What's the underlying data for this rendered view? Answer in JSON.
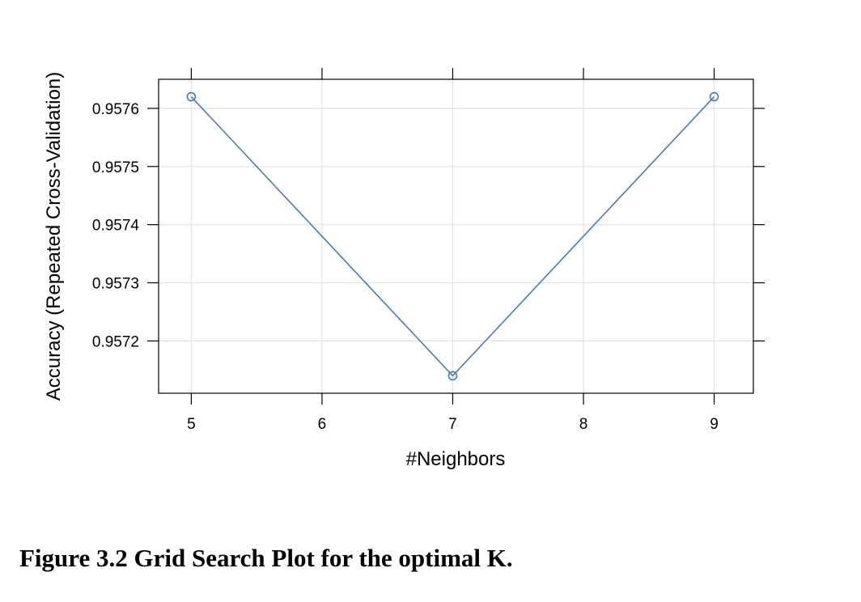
{
  "caption": "Figure 3.2 Grid Search Plot for the optimal K.",
  "chart_data": {
    "type": "line",
    "xlabel": "#Neighbors",
    "ylabel": "Accuracy (Repeated Cross-Validation)",
    "x": [
      5,
      7,
      9
    ],
    "y": [
      0.95762,
      0.95714,
      0.95762
    ],
    "xlim": [
      4.75,
      9.3
    ],
    "ylim": [
      0.95711,
      0.95765
    ],
    "xticks": [
      "5",
      "6",
      "7",
      "8",
      "9"
    ],
    "yticks": [
      "0.9572",
      "0.9573",
      "0.9574",
      "0.9575",
      "0.9576"
    ],
    "grid": true,
    "marker": "open-circle",
    "color": "#4a7bb0"
  }
}
